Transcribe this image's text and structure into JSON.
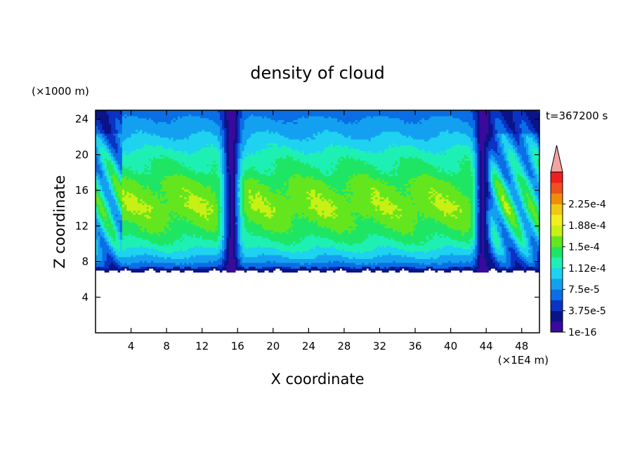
{
  "chart_data": {
    "type": "heatmap",
    "title": "density of cloud",
    "xlabel": "X coordinate",
    "ylabel": "Z coordinate",
    "x_unit": "(×1E4 m)",
    "y_unit": "(×1000 m)",
    "time_label": "t=367200 s",
    "xlim": [
      0,
      50
    ],
    "ylim": [
      0,
      25
    ],
    "x_ticks": [
      4,
      8,
      12,
      16,
      20,
      24,
      28,
      32,
      36,
      40,
      44,
      48
    ],
    "y_ticks": [
      4,
      8,
      12,
      16,
      20,
      24
    ],
    "colorbar": {
      "levels": [
        1e-16,
        1.875e-05,
        3.75e-05,
        5.625e-05,
        7.5e-05,
        9.375e-05,
        0.0001125,
        0.00013125,
        0.00015,
        0.00016875,
        0.0001875,
        0.00020625,
        0.000225,
        0.00024375
      ],
      "labels": [
        "1e-16",
        "3.75e-5",
        "7.5e-5",
        "1.12e-4",
        "1.5e-4",
        "1.88e-4",
        "2.25e-4"
      ],
      "colors": [
        "#3a0a9c",
        "#0a1488",
        "#0a32c4",
        "#0a6ee6",
        "#14a0f0",
        "#1ed2f0",
        "#1ef0b4",
        "#1ee664",
        "#64e61e",
        "#c8f014",
        "#f0f01e",
        "#f0c814",
        "#f08c0a",
        "#f0501e",
        "#f01e1e"
      ],
      "overflow_color": "#f4a3a3"
    },
    "cloud_base_z": 6.8,
    "cloud_top_z": 25,
    "layer_profile": [
      {
        "z": 6.8,
        "value": 3e-05
      },
      {
        "z": 7.3,
        "value": 5.5e-05
      },
      {
        "z": 8.0,
        "value": 8e-05
      },
      {
        "z": 9.0,
        "value": 0.000105
      },
      {
        "z": 10.0,
        "value": 0.000125
      },
      {
        "z": 11.0,
        "value": 0.00014
      },
      {
        "z": 12.0,
        "value": 0.00015
      },
      {
        "z": 13.0,
        "value": 0.000158
      },
      {
        "z": 14.0,
        "value": 0.000165
      },
      {
        "z": 15.0,
        "value": 0.000162
      },
      {
        "z": 16.0,
        "value": 0.000158
      },
      {
        "z": 17.0,
        "value": 0.000152
      },
      {
        "z": 18.0,
        "value": 0.000138
      },
      {
        "z": 19.0,
        "value": 0.000132
      },
      {
        "z": 20.0,
        "value": 0.000122
      },
      {
        "z": 21.0,
        "value": 0.000108
      },
      {
        "z": 22.0,
        "value": 9.5e-05
      },
      {
        "z": 23.0,
        "value": 8.5e-05
      },
      {
        "z": 24.0,
        "value": 7.6e-05
      },
      {
        "z": 24.8,
        "value": 6.5e-05
      }
    ],
    "clear_columns": [
      {
        "x_center": 15.3,
        "width": 1.4
      },
      {
        "x_center": 43.6,
        "width": 1.2
      }
    ]
  }
}
